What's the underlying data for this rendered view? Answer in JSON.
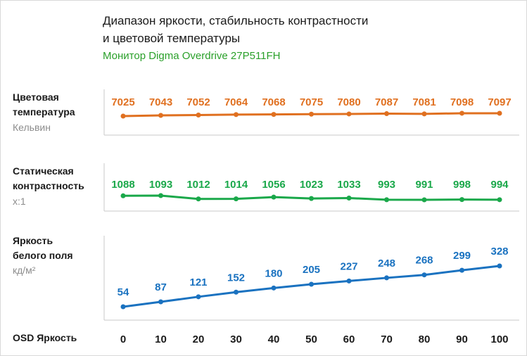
{
  "title_line1": "Диапазон яркости, стабильность контрастности",
  "title_line2": "и цветовой температуры",
  "subtitle": "Монитор Digma Overdrive 27P511FH",
  "x_axis_label": "OSD Яркость",
  "colors": {
    "color_temp": "#e07020",
    "contrast": "#1aa84a",
    "brightness": "#1a72c0",
    "subtitle": "#2aa02a"
  },
  "rows": {
    "color_temp": {
      "label_line1": "Цветовая",
      "label_line2": "температура",
      "unit": "Кельвин"
    },
    "contrast": {
      "label_line1": "Статическая",
      "label_line2": "контрастность",
      "unit": "x:1"
    },
    "brightness": {
      "label_line1": "Яркость",
      "label_line2": "белого поля",
      "unit": "кд/м²"
    }
  },
  "chart_data": {
    "type": "line",
    "x": [
      0,
      10,
      20,
      30,
      40,
      50,
      60,
      70,
      80,
      90,
      100
    ],
    "xlabel": "OSD Яркость",
    "series": [
      {
        "name": "Цветовая температура",
        "key": "color_temp",
        "unit": "Кельвин",
        "values": [
          7025,
          7043,
          7052,
          7064,
          7068,
          7075,
          7080,
          7087,
          7081,
          7098,
          7097
        ]
      },
      {
        "name": "Статическая контрастность",
        "key": "contrast",
        "unit": "x:1",
        "values": [
          1088,
          1093,
          1012,
          1014,
          1056,
          1023,
          1033,
          993,
          991,
          998,
          994
        ]
      },
      {
        "name": "Яркость белого поля",
        "key": "brightness",
        "unit": "кд/м²",
        "values": [
          54,
          87,
          121,
          152,
          180,
          205,
          227,
          248,
          268,
          299,
          328
        ]
      }
    ]
  }
}
